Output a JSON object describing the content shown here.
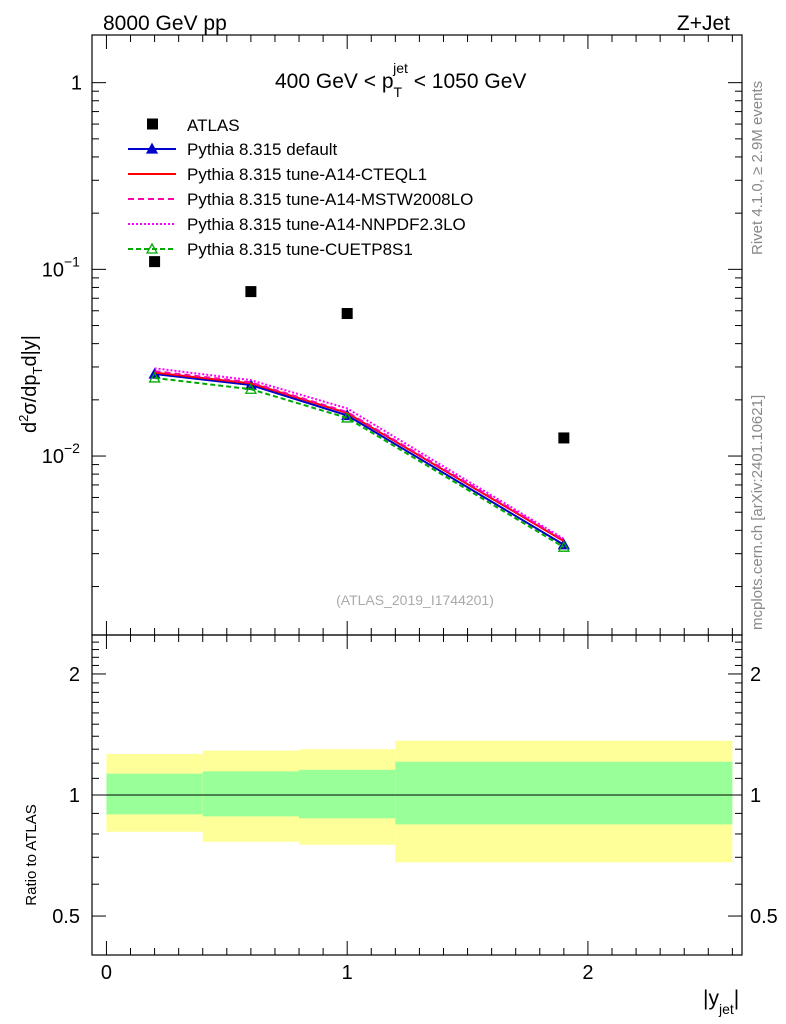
{
  "header": {
    "left": "8000 GeV pp",
    "right": "Z+Jet"
  },
  "side_labels": {
    "rivet": "Rivet 4.1.0, ≥ 2.9M events",
    "mcplots": "mcplots.cern.ch [arXiv:2401.10621]"
  },
  "chart_data": [
    {
      "type": "scatter",
      "panel": "main",
      "title": {
        "prefix": "400 GeV < p",
        "sub": "T",
        "sup": "jet",
        "suffix": " < 1050 GeV"
      },
      "watermark": "(ATLAS_2019_I1744201)",
      "ylabel": "d²σ/dp_T d|y|",
      "xlabel": "|y_jet|",
      "yscale": "log",
      "xlim": [
        -0.06,
        2.64
      ],
      "ylim": [
        0.0011,
        1.8
      ],
      "yticks": [
        {
          "value": 1,
          "label": "1"
        },
        {
          "value": 0.1,
          "base": "10",
          "exp": "−1"
        },
        {
          "value": 0.01,
          "base": "10",
          "exp": "−2"
        }
      ],
      "x": [
        0.2,
        0.6,
        1.0,
        1.9
      ],
      "data": {
        "name": "ATLAS",
        "values": [
          0.11,
          0.076,
          0.058,
          0.0125
        ],
        "color": "#000000"
      },
      "series": [
        {
          "name": "Pythia 8.315 default",
          "values": [
            0.0275,
            0.024,
            0.0165,
            0.00335
          ],
          "color": "#0000cc",
          "dash": "",
          "marker": "triangle-filled"
        },
        {
          "name": "Pythia 8.315 tune-A14-CTEQL1",
          "values": [
            0.028,
            0.0245,
            0.017,
            0.0035
          ],
          "color": "#ff0000",
          "dash": "",
          "marker": "none"
        },
        {
          "name": "Pythia 8.315 tune-A14-MSTW2008LO",
          "values": [
            0.0285,
            0.0248,
            0.0172,
            0.00355
          ],
          "color": "#ff00aa",
          "dash": "6,4",
          "marker": "none"
        },
        {
          "name": "Pythia 8.315 tune-A14-NNPDF2.3LO",
          "values": [
            0.0295,
            0.0255,
            0.018,
            0.0036
          ],
          "color": "#ff00ff",
          "dash": "2,2",
          "marker": "none"
        },
        {
          "name": "Pythia 8.315 tune-CUETP8S1",
          "values": [
            0.0262,
            0.0228,
            0.016,
            0.00325
          ],
          "color": "#00aa00",
          "dash": "5,3",
          "marker": "triangle-open"
        }
      ]
    },
    {
      "type": "area",
      "panel": "ratio",
      "ylabel": "Ratio to ATLAS",
      "yscale": "log",
      "ylim": [
        0.4,
        2.5
      ],
      "yticks": [
        {
          "value": 0.5,
          "label": "0.5"
        },
        {
          "value": 1,
          "label": "1"
        },
        {
          "value": 2,
          "label": "2"
        }
      ],
      "xticks": [
        {
          "value": 0,
          "label": "0"
        },
        {
          "value": 1,
          "label": "1"
        },
        {
          "value": 2,
          "label": "2"
        }
      ],
      "bins": [
        {
          "lo": 0.0,
          "hi": 0.4,
          "stat": [
            0.895,
            1.13
          ],
          "total": [
            0.81,
            1.265
          ]
        },
        {
          "lo": 0.4,
          "hi": 0.8,
          "stat": [
            0.885,
            1.145
          ],
          "total": [
            0.765,
            1.29
          ]
        },
        {
          "lo": 0.8,
          "hi": 1.2,
          "stat": [
            0.875,
            1.155
          ],
          "total": [
            0.752,
            1.3
          ]
        },
        {
          "lo": 1.2,
          "hi": 2.6,
          "stat": [
            0.845,
            1.21
          ],
          "total": [
            0.68,
            1.365
          ]
        }
      ],
      "stat_color": "#99ff99",
      "total_color": "#ffff99"
    }
  ]
}
